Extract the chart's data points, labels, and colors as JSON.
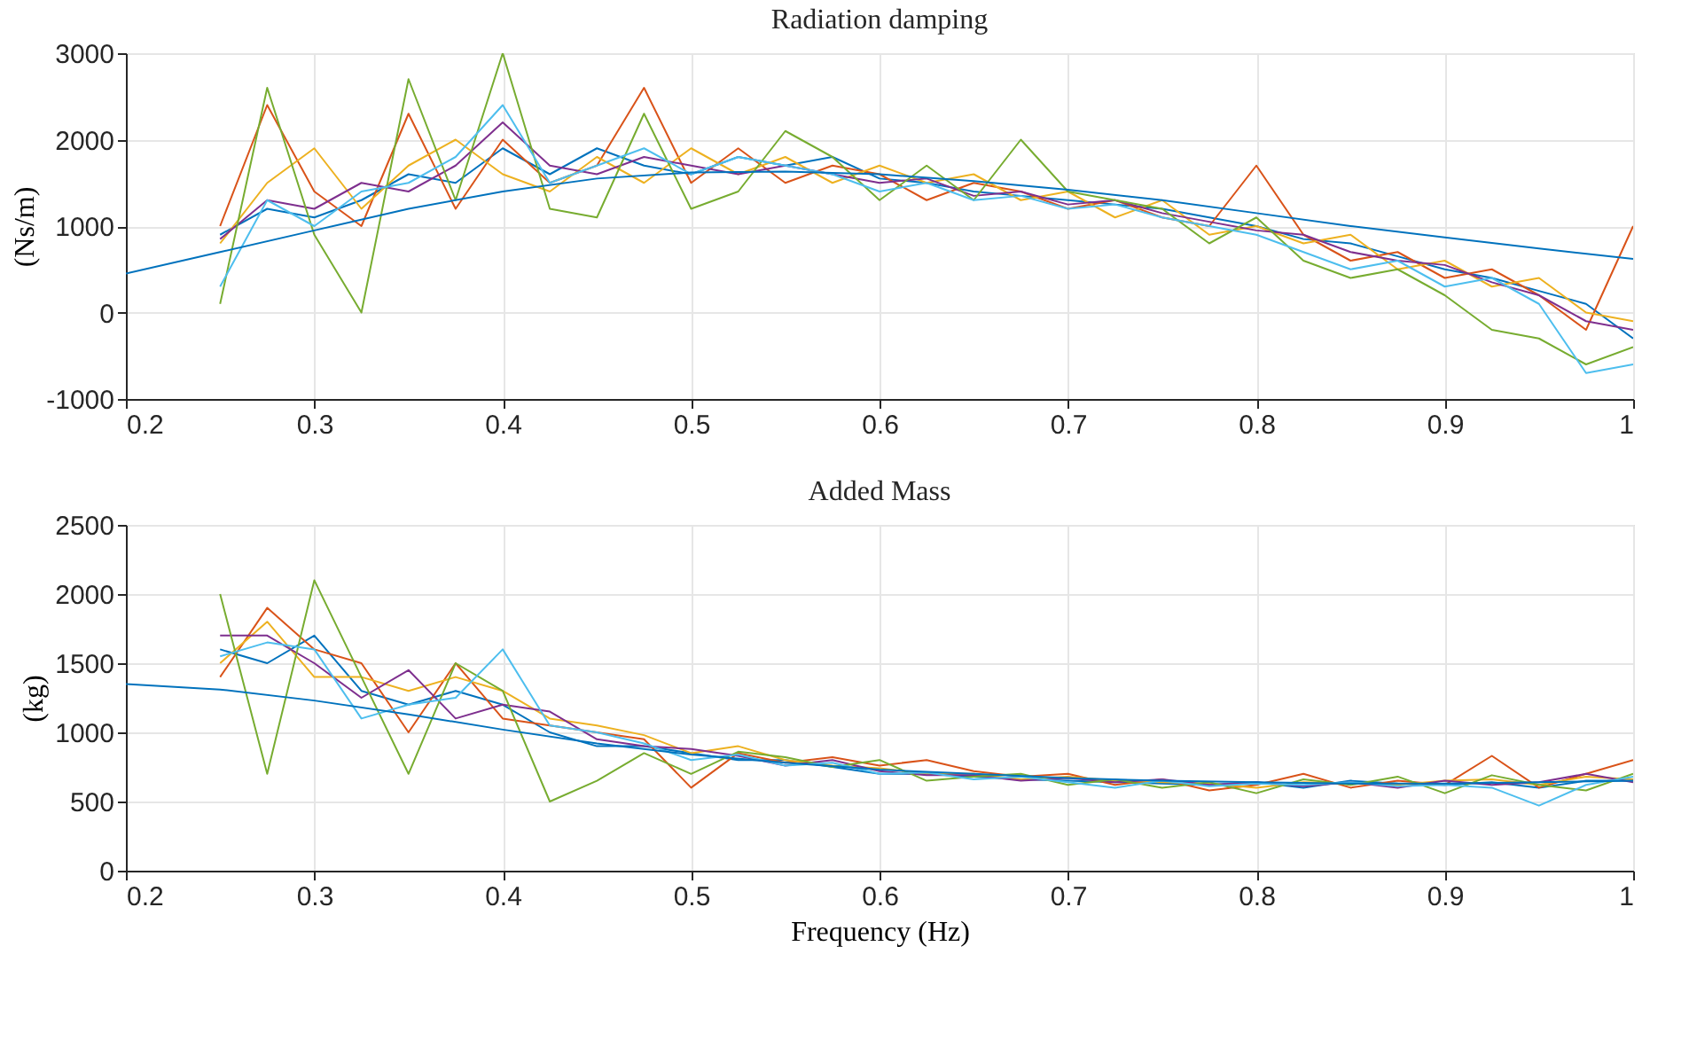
{
  "chart_data": [
    {
      "type": "line",
      "title": "Radiation damping",
      "ylabel": "(Ns/m)",
      "xlim": [
        0.2,
        1
      ],
      "ylim": [
        -1000,
        3000
      ],
      "xticks": [
        0.2,
        0.3,
        0.4,
        0.5,
        0.6,
        0.7,
        0.8,
        0.9,
        1
      ],
      "yticks": [
        -1000,
        0,
        1000,
        2000,
        3000
      ],
      "grid": true,
      "x": [
        0.25,
        0.275,
        0.3,
        0.325,
        0.35,
        0.375,
        0.4,
        0.425,
        0.45,
        0.475,
        0.5,
        0.525,
        0.55,
        0.575,
        0.6,
        0.625,
        0.65,
        0.675,
        0.7,
        0.725,
        0.75,
        0.775,
        0.8,
        0.825,
        0.85,
        0.875,
        0.9,
        0.925,
        0.95,
        0.975,
        1.0
      ],
      "series": [
        {
          "color": "#0072bd",
          "values": [
            900,
            1200,
            1100,
            1300,
            1600,
            1500,
            1900,
            1600,
            1900,
            1700,
            1600,
            1800,
            1700,
            1800,
            1550,
            1500,
            1400,
            1350,
            1300,
            1250,
            1200,
            1100,
            1000,
            850,
            800,
            650,
            500,
            400,
            250,
            100,
            -300
          ]
        },
        {
          "color": "#d95319",
          "values": [
            1000,
            2400,
            1400,
            1000,
            2300,
            1200,
            2000,
            1500,
            1700,
            2600,
            1500,
            1900,
            1500,
            1700,
            1600,
            1300,
            1500,
            1400,
            1200,
            1300,
            1100,
            1000,
            1700,
            900,
            600,
            700,
            400,
            500,
            200,
            -200,
            1000
          ]
        },
        {
          "color": "#edb120",
          "values": [
            800,
            1500,
            1900,
            1200,
            1700,
            2000,
            1600,
            1400,
            1800,
            1500,
            1900,
            1600,
            1800,
            1500,
            1700,
            1500,
            1600,
            1300,
            1400,
            1100,
            1300,
            900,
            1000,
            800,
            900,
            500,
            600,
            300,
            400,
            0,
            -100
          ]
        },
        {
          "color": "#7e2f8e",
          "values": [
            850,
            1300,
            1200,
            1500,
            1400,
            1700,
            2200,
            1700,
            1600,
            1800,
            1700,
            1600,
            1700,
            1600,
            1500,
            1550,
            1350,
            1400,
            1250,
            1300,
            1150,
            1050,
            950,
            900,
            700,
            600,
            550,
            350,
            200,
            -100,
            -200
          ]
        },
        {
          "color": "#77ac30",
          "values": [
            100,
            2600,
            900,
            0,
            2700,
            1300,
            3000,
            1200,
            1100,
            2300,
            1200,
            1400,
            2100,
            1800,
            1300,
            1700,
            1300,
            2000,
            1400,
            1300,
            1200,
            800,
            1100,
            600,
            400,
            500,
            200,
            -200,
            -300,
            -600,
            -400
          ]
        },
        {
          "color": "#4dbeee",
          "values": [
            300,
            1300,
            1000,
            1400,
            1500,
            1800,
            2400,
            1500,
            1700,
            1900,
            1600,
            1800,
            1700,
            1600,
            1400,
            1500,
            1300,
            1350,
            1200,
            1250,
            1100,
            1000,
            900,
            700,
            500,
            600,
            300,
            400,
            100,
            -700,
            -600
          ]
        },
        {
          "color": "#0072bd",
          "x": [
            0.2,
            0.25,
            0.3,
            0.35,
            0.4,
            0.45,
            0.5,
            0.55,
            0.6,
            0.65,
            0.7,
            0.75,
            0.8,
            0.85,
            0.9,
            0.95,
            1.0
          ],
          "values": [
            450,
            700,
            950,
            1200,
            1400,
            1550,
            1620,
            1630,
            1600,
            1520,
            1420,
            1300,
            1150,
            1000,
            870,
            740,
            620
          ]
        }
      ]
    },
    {
      "type": "line",
      "title": "Added Mass",
      "xlabel": "Frequency (Hz)",
      "ylabel": "(kg)",
      "xlim": [
        0.2,
        1
      ],
      "ylim": [
        0,
        2500
      ],
      "xticks": [
        0.2,
        0.3,
        0.4,
        0.5,
        0.6,
        0.7,
        0.8,
        0.9,
        1
      ],
      "yticks": [
        0,
        500,
        1000,
        1500,
        2000,
        2500
      ],
      "grid": true,
      "x": [
        0.25,
        0.275,
        0.3,
        0.325,
        0.35,
        0.375,
        0.4,
        0.425,
        0.45,
        0.475,
        0.5,
        0.525,
        0.55,
        0.575,
        0.6,
        0.625,
        0.65,
        0.675,
        0.7,
        0.725,
        0.75,
        0.775,
        0.8,
        0.825,
        0.85,
        0.875,
        0.9,
        0.925,
        0.95,
        0.975,
        1.0
      ],
      "series": [
        {
          "color": "#0072bd",
          "values": [
            1600,
            1500,
            1700,
            1300,
            1200,
            1300,
            1200,
            1000,
            900,
            900,
            850,
            800,
            800,
            750,
            700,
            700,
            680,
            660,
            650,
            640,
            630,
            620,
            640,
            600,
            650,
            630,
            620,
            640,
            600,
            650,
            650
          ]
        },
        {
          "color": "#d95319",
          "values": [
            1400,
            1900,
            1600,
            1500,
            1000,
            1500,
            1100,
            1050,
            1000,
            950,
            600,
            850,
            780,
            820,
            760,
            800,
            720,
            680,
            700,
            620,
            660,
            580,
            620,
            700,
            600,
            650,
            620,
            830,
            600,
            700,
            800
          ]
        },
        {
          "color": "#edb120",
          "values": [
            1500,
            1800,
            1400,
            1400,
            1300,
            1400,
            1300,
            1100,
            1050,
            980,
            850,
            900,
            800,
            760,
            740,
            700,
            700,
            660,
            680,
            650,
            640,
            630,
            600,
            640,
            630,
            620,
            650,
            660,
            620,
            680,
            660
          ]
        },
        {
          "color": "#7e2f8e",
          "values": [
            1700,
            1700,
            1500,
            1250,
            1450,
            1100,
            1200,
            1150,
            950,
            900,
            880,
            830,
            760,
            800,
            720,
            690,
            690,
            650,
            670,
            640,
            660,
            620,
            640,
            610,
            640,
            600,
            650,
            620,
            640,
            700,
            640
          ]
        },
        {
          "color": "#77ac30",
          "values": [
            2000,
            700,
            2100,
            1400,
            700,
            1500,
            1300,
            500,
            650,
            850,
            700,
            860,
            820,
            750,
            800,
            650,
            680,
            700,
            620,
            660,
            600,
            640,
            560,
            660,
            620,
            680,
            560,
            690,
            620,
            580,
            700
          ]
        },
        {
          "color": "#4dbeee",
          "values": [
            1550,
            1650,
            1600,
            1100,
            1200,
            1250,
            1600,
            1050,
            1000,
            920,
            800,
            840,
            760,
            780,
            700,
            710,
            660,
            680,
            640,
            600,
            650,
            610,
            630,
            620,
            640,
            610,
            620,
            600,
            470,
            620,
            680
          ]
        },
        {
          "color": "#0072bd",
          "x": [
            0.2,
            0.25,
            0.3,
            0.35,
            0.4,
            0.45,
            0.5,
            0.55,
            0.6,
            0.65,
            0.7,
            0.75,
            0.8,
            0.85,
            0.9,
            0.95,
            1.0
          ],
          "values": [
            1350,
            1310,
            1230,
            1130,
            1020,
            920,
            840,
            780,
            730,
            700,
            670,
            650,
            640,
            630,
            630,
            640,
            650
          ]
        }
      ]
    }
  ]
}
